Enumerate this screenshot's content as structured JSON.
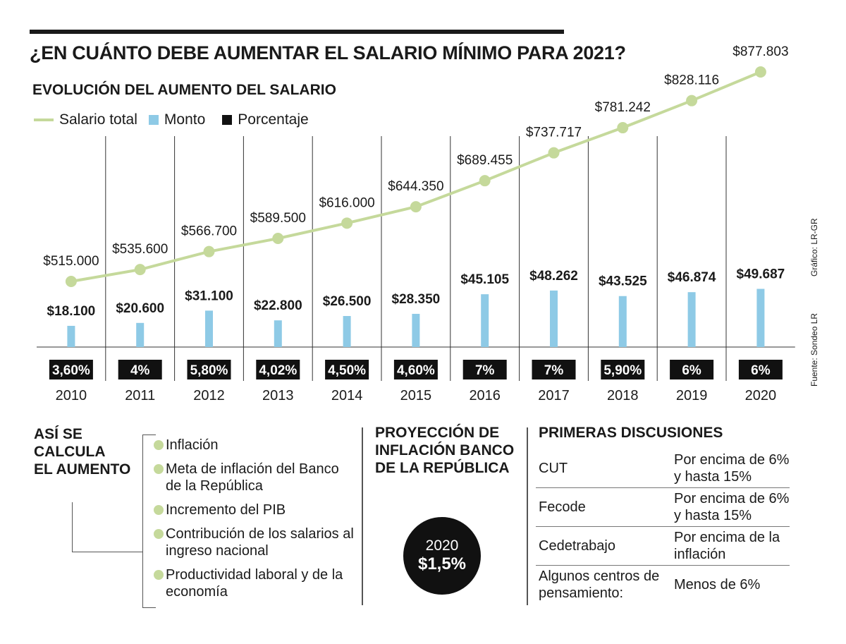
{
  "title": "¿EN CUÁNTO DEBE AUMENTAR EL SALARIO MÍNIMO PARA 2021?",
  "subtitle": "EVOLUCIÓN DEL AUMENTO DEL SALARIO",
  "legend": {
    "salario_total": "Salario total",
    "monto": "Monto",
    "porcentaje": "Porcentaje"
  },
  "colors": {
    "line": "#c5d99b",
    "bar": "#8ecae6",
    "pct_box": "#111111",
    "text": "#1a1a1a"
  },
  "chart_data": {
    "type": "bar",
    "categories": [
      "2010",
      "2011",
      "2012",
      "2013",
      "2014",
      "2015",
      "2016",
      "2017",
      "2018",
      "2019",
      "2020"
    ],
    "series": [
      {
        "name": "Salario total",
        "kind": "line",
        "values": [
          515000,
          535600,
          566700,
          589500,
          616000,
          644350,
          689455,
          737717,
          781242,
          828116,
          877803
        ],
        "labels": [
          "$515.000",
          "$535.600",
          "$566.700",
          "$589.500",
          "$616.000",
          "$644.350",
          "$689.455",
          "$737.717",
          "$781.242",
          "$828.116",
          "$877.803"
        ]
      },
      {
        "name": "Monto",
        "kind": "bar",
        "values": [
          18100,
          20600,
          31100,
          22800,
          26500,
          28350,
          45105,
          48262,
          43525,
          46874,
          49687
        ],
        "labels": [
          "$18.100",
          "$20.600",
          "$31.100",
          "$22.800",
          "$26.500",
          "$28.350",
          "$45.105",
          "$48.262",
          "$43.525",
          "$46.874",
          "$49.687"
        ]
      },
      {
        "name": "Porcentaje",
        "kind": "label",
        "values": [
          3.6,
          4,
          5.8,
          4.02,
          4.5,
          4.6,
          7,
          7,
          5.9,
          6,
          6
        ],
        "labels": [
          "3,60%",
          "4%",
          "5,80%",
          "4,02%",
          "4,50%",
          "4,60%",
          "7%",
          "7%",
          "5,90%",
          "6%",
          "6%"
        ]
      }
    ],
    "title": "EVOLUCIÓN DEL AUMENTO DEL SALARIO",
    "xlabel": "",
    "ylabel": "",
    "legend_position": "top-left"
  },
  "credits": {
    "grafico": "Gráfico: LR-GR",
    "fuente": "Fuente: Sondeo LR"
  },
  "calculo": {
    "title": "ASÍ SE\nCALCULA\nEL AUMENTO",
    "items": [
      "Inflación",
      "Meta de inflación del Banco de la República",
      "Incremento del PIB",
      "Contribución de los salarios al ingreso nacional",
      "Productividad laboral y de la economía"
    ]
  },
  "proyeccion": {
    "title": "PROYECCIÓN DE INFLACIÓN BANCO DE LA REPÚBLICA",
    "year": "2020",
    "value": "$1,5%"
  },
  "discusiones": {
    "title": "PRIMERAS DISCUSIONES",
    "rows": [
      {
        "org": "CUT",
        "position": "Por encima de 6% y hasta 15%"
      },
      {
        "org": "Fecode",
        "position": "Por encima de 6% y hasta 15%"
      },
      {
        "org": "Cedetrabajo",
        "position": "Por encima de la inflación"
      },
      {
        "org": "Algunos centros de pensamiento:",
        "position": "Menos de 6%"
      }
    ]
  }
}
